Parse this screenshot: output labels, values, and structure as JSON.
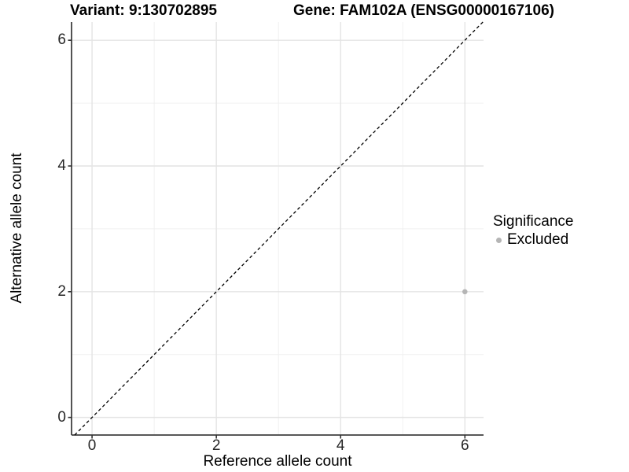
{
  "titles": {
    "variant": "Variant: 9:130702895",
    "gene": "Gene: FAM102A (ENSG00000167106)"
  },
  "chart_data": {
    "type": "scatter",
    "title_left": "Variant: 9:130702895",
    "title_right": "Gene: FAM102A (ENSG00000167106)",
    "xlabel": "Reference allele count",
    "ylabel": "Alternative allele count",
    "xlim": [
      -0.33,
      6.3
    ],
    "ylim": [
      -0.28,
      6.29
    ],
    "x_major_ticks": [
      0,
      2,
      4,
      6
    ],
    "x_minor_ticks": [
      1,
      3,
      5
    ],
    "y_major_ticks": [
      0,
      2,
      4,
      6
    ],
    "y_minor_ticks": [
      1,
      3,
      5
    ],
    "grid": true,
    "reference_line": {
      "type": "identity",
      "style": "dashed",
      "color": "#000000"
    },
    "series": [
      {
        "name": "Excluded",
        "color": "#b5b5b5",
        "points": [
          {
            "x": 6,
            "y": 2
          }
        ]
      }
    ],
    "legend": {
      "title": "Significance",
      "position": "right",
      "items": [
        {
          "label": "Excluded",
          "color": "#b5b5b5"
        }
      ]
    }
  },
  "colors": {
    "background": "#ffffff",
    "axis_line": "#404040",
    "tick_mark": "#333333",
    "major_grid": "#e4e4e4",
    "minor_grid": "#f0f0f0",
    "tick_label": "#262626",
    "point": "#b5b5b5"
  }
}
